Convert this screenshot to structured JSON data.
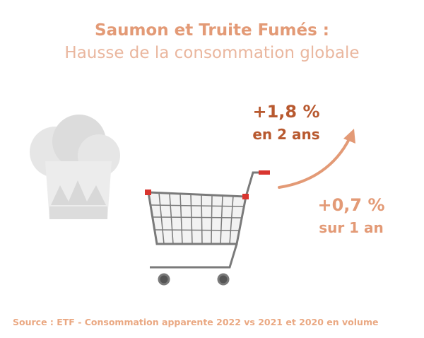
{
  "header": {
    "title": "Saumon et Truite Fumés :",
    "subtitle": "Hausse de la consommation globale"
  },
  "stats": [
    {
      "value": "+1,8 %",
      "period": "en 2 ans"
    },
    {
      "value": "+0,7 %",
      "period": "sur 1 an"
    }
  ],
  "footer": {
    "source": "Source : ETF - Consommation apparente 2022 vs 2021 et 2020 en volume"
  }
}
